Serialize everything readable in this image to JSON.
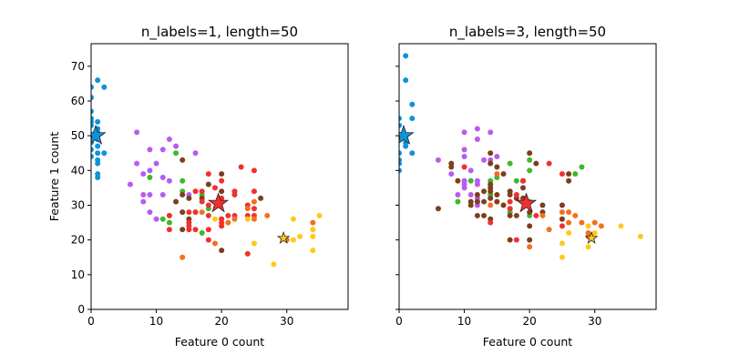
{
  "chart_data": [
    {
      "type": "scatter",
      "title": "n_labels=1, length=50",
      "xlabel": "Feature 0 count",
      "ylabel": "Feature 1 count",
      "xlim": [
        0,
        39.4
      ],
      "ylim": [
        0,
        76.5
      ],
      "xticks": [
        0,
        10,
        20,
        30
      ],
      "yticks": [
        0,
        10,
        20,
        30,
        40,
        50,
        60,
        70
      ],
      "show_yticklabels": true,
      "series": [
        {
          "name": "blue",
          "color": "#0e92da",
          "points": [
            [
              0,
              64
            ],
            [
              0,
              61
            ],
            [
              0,
              57
            ],
            [
              0,
              55
            ],
            [
              0,
              54
            ],
            [
              0,
              53
            ],
            [
              0,
              50
            ],
            [
              0,
              48
            ],
            [
              0,
              46
            ],
            [
              0,
              44
            ],
            [
              1,
              66
            ],
            [
              1,
              54
            ],
            [
              1,
              52
            ],
            [
              1,
              51
            ],
            [
              1,
              50
            ],
            [
              1,
              49
            ],
            [
              1,
              47
            ],
            [
              1,
              45
            ],
            [
              1,
              43
            ],
            [
              1,
              42
            ],
            [
              1,
              39
            ],
            [
              1,
              38
            ],
            [
              2,
              64
            ],
            [
              2,
              45
            ]
          ]
        },
        {
          "name": "purple",
          "color": "#b65cf0",
          "points": [
            [
              7,
              51
            ],
            [
              12,
              49
            ],
            [
              13,
              47
            ],
            [
              9,
              46
            ],
            [
              11,
              46
            ],
            [
              16,
              45
            ],
            [
              7,
              42
            ],
            [
              9,
              40
            ],
            [
              10,
              42
            ],
            [
              8,
              39
            ],
            [
              11,
              38
            ],
            [
              12,
              37
            ],
            [
              6,
              36
            ],
            [
              8,
              33
            ],
            [
              9,
              33
            ],
            [
              11,
              33
            ],
            [
              15,
              33
            ],
            [
              8,
              31
            ],
            [
              9,
              28
            ],
            [
              10,
              26
            ],
            [
              12,
              27
            ]
          ]
        },
        {
          "name": "green",
          "color": "#3eb82e",
          "points": [
            [
              13,
              45
            ],
            [
              9,
              38
            ],
            [
              14,
              37
            ],
            [
              14,
              34
            ],
            [
              17,
              33
            ],
            [
              18,
              29
            ],
            [
              11,
              26
            ],
            [
              12,
              25
            ],
            [
              17,
              22
            ],
            [
              20,
              26
            ]
          ]
        },
        {
          "name": "brown",
          "color": "#7e3e1c",
          "points": [
            [
              14,
              43
            ],
            [
              20,
              39
            ],
            [
              18,
              36
            ],
            [
              20,
              34
            ],
            [
              26,
              32
            ],
            [
              17,
              32
            ],
            [
              13,
              31
            ],
            [
              15,
              32
            ],
            [
              14,
              28
            ],
            [
              15,
              26
            ],
            [
              14,
              23
            ],
            [
              20,
              17
            ],
            [
              14,
              33
            ]
          ]
        },
        {
          "name": "red",
          "color": "#f03030",
          "points": [
            [
              23,
              41
            ],
            [
              25,
              40
            ],
            [
              18,
              39
            ],
            [
              20,
              37
            ],
            [
              19,
              35
            ],
            [
              16,
              34
            ],
            [
              17,
              34
            ],
            [
              22,
              34
            ],
            [
              22,
              33
            ],
            [
              25,
              34
            ],
            [
              17,
              31
            ],
            [
              18,
              30
            ],
            [
              20,
              32
            ],
            [
              24,
              30
            ],
            [
              25,
              29
            ],
            [
              24,
              27
            ],
            [
              25,
              27
            ],
            [
              21,
              27
            ],
            [
              22,
              27
            ],
            [
              18,
              27
            ],
            [
              16,
              28
            ],
            [
              15,
              28
            ],
            [
              12,
              27
            ],
            [
              12,
              23
            ],
            [
              15,
              25
            ],
            [
              15,
              24
            ],
            [
              15,
              23
            ],
            [
              16,
              23
            ],
            [
              18,
              23
            ],
            [
              20,
              24
            ],
            [
              20,
              25
            ],
            [
              20,
              26
            ],
            [
              18,
              20
            ],
            [
              24,
              16
            ]
          ]
        },
        {
          "name": "orange",
          "color": "#f27020",
          "points": [
            [
              17,
              28
            ],
            [
              25,
              31
            ],
            [
              24,
              29
            ],
            [
              27,
              27
            ],
            [
              22,
              26
            ],
            [
              25,
              26
            ],
            [
              21,
              25
            ],
            [
              14,
              15
            ],
            [
              19,
              19
            ],
            [
              34,
              25
            ],
            [
              30,
              20
            ]
          ]
        },
        {
          "name": "yellow",
          "color": "#ffc81c",
          "points": [
            [
              19,
              26
            ],
            [
              24,
              26
            ],
            [
              31,
              26
            ],
            [
              35,
              27
            ],
            [
              34,
              23
            ],
            [
              32,
              21
            ],
            [
              31,
              20
            ],
            [
              34,
              21
            ],
            [
              34,
              17
            ],
            [
              25,
              19
            ],
            [
              28,
              13
            ]
          ]
        }
      ],
      "stars": [
        {
          "color": "#0e92da",
          "x": 0.7,
          "y": 50,
          "size": "large"
        },
        {
          "color": "#f03030",
          "x": 19.5,
          "y": 30.5,
          "size": "large"
        },
        {
          "color": "#ffc81c",
          "x": 29.5,
          "y": 20.5,
          "size": "small"
        }
      ]
    },
    {
      "type": "scatter",
      "title": "n_labels=3, length=50",
      "xlabel": "Feature 0 count",
      "ylabel": "",
      "xlim": [
        0,
        39.4
      ],
      "ylim": [
        0,
        76.5
      ],
      "xticks": [
        0,
        10,
        20,
        30
      ],
      "yticks": [
        0,
        10,
        20,
        30,
        40,
        50,
        60,
        70
      ],
      "show_yticklabels": false,
      "series": [
        {
          "name": "blue",
          "color": "#0e92da",
          "points": [
            [
              1,
              73
            ],
            [
              1,
              66
            ],
            [
              2,
              59
            ],
            [
              2,
              55
            ],
            [
              0,
              55
            ],
            [
              0,
              53
            ],
            [
              1,
              48
            ],
            [
              1,
              47
            ],
            [
              2,
              45
            ],
            [
              0,
              45
            ],
            [
              0,
              43
            ],
            [
              0,
              42
            ],
            [
              0,
              40
            ]
          ]
        },
        {
          "name": "purple",
          "color": "#b65cf0",
          "points": [
            [
              10,
              51
            ],
            [
              12,
              52
            ],
            [
              12,
              49
            ],
            [
              14,
              51
            ],
            [
              10,
              46
            ],
            [
              10,
              44
            ],
            [
              6,
              43
            ],
            [
              13,
              43
            ],
            [
              14,
              43
            ],
            [
              15,
              44
            ],
            [
              8,
              39
            ],
            [
              11,
              40
            ],
            [
              12,
              37
            ],
            [
              12,
              36
            ],
            [
              10,
              37
            ],
            [
              10,
              36
            ],
            [
              10,
              35
            ],
            [
              9,
              33
            ],
            [
              11,
              33
            ],
            [
              12,
              32
            ],
            [
              12,
              30
            ]
          ]
        },
        {
          "name": "green",
          "color": "#3eb82e",
          "points": [
            [
              20,
              43
            ],
            [
              17,
              42
            ],
            [
              28,
              41
            ],
            [
              27,
              39
            ],
            [
              20,
              40
            ],
            [
              15,
              38
            ],
            [
              14,
              37
            ],
            [
              11,
              37
            ],
            [
              9,
              31
            ],
            [
              14,
              33
            ],
            [
              18,
              37
            ],
            [
              20,
              31
            ],
            [
              17,
              28
            ],
            [
              20,
              27
            ]
          ]
        },
        {
          "name": "brown",
          "color": "#7e3e1c",
          "points": [
            [
              20,
              45
            ],
            [
              14,
              45
            ],
            [
              14,
              42
            ],
            [
              8,
              42
            ],
            [
              8,
              41
            ],
            [
              15,
              41
            ],
            [
              16,
              39
            ],
            [
              21,
              42
            ],
            [
              26,
              39
            ],
            [
              26,
              37
            ],
            [
              19,
              37
            ],
            [
              19,
              35
            ],
            [
              9,
              37
            ],
            [
              14,
              36
            ],
            [
              14,
              35
            ],
            [
              14,
              34
            ],
            [
              13,
              34
            ],
            [
              12,
              33
            ],
            [
              14,
              32
            ],
            [
              15,
              33
            ],
            [
              17,
              34
            ],
            [
              17,
              33
            ],
            [
              19,
              32
            ],
            [
              18,
              32
            ],
            [
              12,
              31
            ],
            [
              15,
              31
            ],
            [
              16,
              30
            ],
            [
              13,
              31
            ],
            [
              11,
              30
            ],
            [
              11,
              31
            ],
            [
              13,
              27
            ],
            [
              12,
              27
            ],
            [
              6,
              29
            ],
            [
              14,
              26
            ],
            [
              17,
              27
            ],
            [
              18,
              27
            ],
            [
              20,
              28
            ],
            [
              22,
              30
            ],
            [
              22,
              28
            ],
            [
              25,
              30
            ],
            [
              25,
              26
            ],
            [
              20,
              24
            ],
            [
              17,
              20
            ],
            [
              20,
              20
            ]
          ]
        },
        {
          "name": "red",
          "color": "#f03030",
          "points": [
            [
              10,
              41
            ],
            [
              23,
              42
            ],
            [
              25,
              39
            ],
            [
              19,
              37
            ],
            [
              18,
              33
            ],
            [
              19,
              31
            ],
            [
              17,
              31
            ],
            [
              17,
              29
            ],
            [
              21,
              27
            ],
            [
              14,
              25
            ],
            [
              25,
              24
            ],
            [
              18,
              20
            ]
          ]
        },
        {
          "name": "orange",
          "color": "#f27020",
          "points": [
            [
              15,
              39
            ],
            [
              14,
              30
            ],
            [
              25,
              28
            ],
            [
              26,
              28
            ],
            [
              26,
              25
            ],
            [
              27,
              27
            ],
            [
              23,
              23
            ],
            [
              28,
              25
            ],
            [
              30,
              25
            ],
            [
              31,
              24
            ],
            [
              29,
              22
            ],
            [
              29,
              21
            ],
            [
              20,
              18
            ],
            [
              22,
              27
            ]
          ]
        },
        {
          "name": "yellow",
          "color": "#ffc81c",
          "points": [
            [
              29,
              24
            ],
            [
              26,
              22
            ],
            [
              30,
              22
            ],
            [
              34,
              24
            ],
            [
              37,
              21
            ],
            [
              25,
              19
            ],
            [
              29,
              18
            ],
            [
              25,
              15
            ]
          ]
        }
      ],
      "stars": [
        {
          "color": "#0e92da",
          "x": 0.7,
          "y": 50,
          "size": "large"
        },
        {
          "color": "#f03030",
          "x": 19.5,
          "y": 30.5,
          "size": "large"
        },
        {
          "color": "#ffc81c",
          "x": 29.5,
          "y": 20.5,
          "size": "small"
        }
      ]
    }
  ]
}
